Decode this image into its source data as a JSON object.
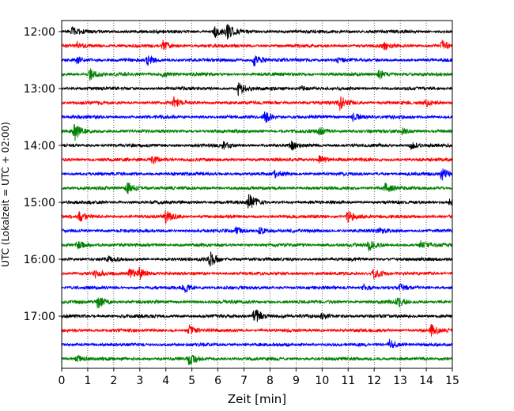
{
  "chart_data": {
    "type": "line",
    "xlabel": "Zeit  [min]",
    "ylabel": "UTC (Lokalzeit = UTC + 02:00)",
    "xlim": [
      0,
      15
    ],
    "x_ticks": [
      0,
      1,
      2,
      3,
      4,
      5,
      6,
      7,
      8,
      9,
      10,
      11,
      12,
      13,
      14,
      15
    ],
    "x_tick_labels": [
      "0",
      "1",
      "2",
      "3",
      "4",
      "5",
      "6",
      "7",
      "8",
      "9",
      "10",
      "11",
      "12",
      "13",
      "14",
      "15"
    ],
    "y_tick_labels": [
      "12:00",
      "13:00",
      "14:00",
      "15:00",
      "16:00",
      "17:00"
    ],
    "row_interval_min": 15,
    "start_time": "12:00",
    "grid_x": true,
    "grid_style": "dotted",
    "colors": [
      "#000000",
      "#ff0000",
      "#0000ff",
      "#008000"
    ],
    "traces": [
      {
        "time": "12:00",
        "color": "#000000",
        "bursts": [
          {
            "t": 0.4,
            "a": 0.5
          },
          {
            "t": 6.3,
            "a": 1.0
          },
          {
            "t": 5.9,
            "a": 0.6
          }
        ]
      },
      {
        "time": "12:15",
        "color": "#ff0000",
        "bursts": [
          {
            "t": 0.6,
            "a": 0.4
          },
          {
            "t": 3.9,
            "a": 0.5
          },
          {
            "t": 12.4,
            "a": 0.4
          },
          {
            "t": 14.6,
            "a": 0.6
          }
        ]
      },
      {
        "time": "12:30",
        "color": "#0000ff",
        "bursts": [
          {
            "t": 0.6,
            "a": 0.4
          },
          {
            "t": 3.3,
            "a": 0.5
          },
          {
            "t": 7.4,
            "a": 0.8
          },
          {
            "t": 10.6,
            "a": 0.3
          }
        ]
      },
      {
        "time": "12:45",
        "color": "#008000",
        "bursts": [
          {
            "t": 1.1,
            "a": 0.6
          },
          {
            "t": 3.9,
            "a": 0.3
          },
          {
            "t": 12.2,
            "a": 0.5
          }
        ]
      },
      {
        "time": "13:00",
        "color": "#000000",
        "bursts": [
          {
            "t": 6.8,
            "a": 0.8
          },
          {
            "t": 9.2,
            "a": 0.3
          }
        ]
      },
      {
        "time": "13:15",
        "color": "#ff0000",
        "bursts": [
          {
            "t": 4.3,
            "a": 0.6
          },
          {
            "t": 10.7,
            "a": 0.9
          },
          {
            "t": 14.0,
            "a": 0.4
          }
        ]
      },
      {
        "time": "13:30",
        "color": "#0000ff",
        "bursts": [
          {
            "t": 7.8,
            "a": 0.7
          },
          {
            "t": 11.2,
            "a": 0.5
          }
        ]
      },
      {
        "time": "13:45",
        "color": "#008000",
        "bursts": [
          {
            "t": 0.5,
            "a": 1.0
          },
          {
            "t": 9.9,
            "a": 0.4
          },
          {
            "t": 13.1,
            "a": 0.3
          }
        ]
      },
      {
        "time": "14:00",
        "color": "#000000",
        "bursts": [
          {
            "t": 6.2,
            "a": 0.4
          },
          {
            "t": 8.8,
            "a": 0.5
          },
          {
            "t": 13.4,
            "a": 0.4
          }
        ]
      },
      {
        "time": "14:15",
        "color": "#ff0000",
        "bursts": [
          {
            "t": 3.5,
            "a": 0.5
          },
          {
            "t": 9.9,
            "a": 0.6
          }
        ]
      },
      {
        "time": "14:30",
        "color": "#0000ff",
        "bursts": [
          {
            "t": 8.2,
            "a": 0.4
          },
          {
            "t": 14.6,
            "a": 0.7
          }
        ]
      },
      {
        "time": "14:45",
        "color": "#008000",
        "bursts": [
          {
            "t": 2.5,
            "a": 0.8
          },
          {
            "t": 12.4,
            "a": 0.7
          }
        ]
      },
      {
        "time": "15:00",
        "color": "#000000",
        "bursts": [
          {
            "t": 7.2,
            "a": 0.9
          },
          {
            "t": 14.9,
            "a": 0.3
          }
        ]
      },
      {
        "time": "15:15",
        "color": "#ff0000",
        "bursts": [
          {
            "t": 0.7,
            "a": 0.5
          },
          {
            "t": 4.0,
            "a": 0.7
          },
          {
            "t": 11.0,
            "a": 0.8
          }
        ]
      },
      {
        "time": "15:30",
        "color": "#0000ff",
        "bursts": [
          {
            "t": 6.7,
            "a": 0.4
          },
          {
            "t": 7.6,
            "a": 0.4
          },
          {
            "t": 12.2,
            "a": 0.3
          }
        ]
      },
      {
        "time": "15:45",
        "color": "#008000",
        "bursts": [
          {
            "t": 0.6,
            "a": 0.6
          },
          {
            "t": 11.8,
            "a": 0.6
          },
          {
            "t": 13.8,
            "a": 0.4
          }
        ]
      },
      {
        "time": "16:00",
        "color": "#000000",
        "bursts": [
          {
            "t": 5.7,
            "a": 0.9
          },
          {
            "t": 1.8,
            "a": 0.3
          }
        ]
      },
      {
        "time": "16:15",
        "color": "#ff0000",
        "bursts": [
          {
            "t": 1.3,
            "a": 0.4
          },
          {
            "t": 2.6,
            "a": 0.6
          },
          {
            "t": 3.0,
            "a": 0.6
          },
          {
            "t": 12.0,
            "a": 0.7
          }
        ]
      },
      {
        "time": "16:30",
        "color": "#0000ff",
        "bursts": [
          {
            "t": 4.7,
            "a": 0.5
          },
          {
            "t": 11.6,
            "a": 0.4
          },
          {
            "t": 13.0,
            "a": 0.3
          }
        ]
      },
      {
        "time": "16:45",
        "color": "#008000",
        "bursts": [
          {
            "t": 1.4,
            "a": 0.7
          },
          {
            "t": 12.9,
            "a": 0.6
          }
        ]
      },
      {
        "time": "17:00",
        "color": "#000000",
        "bursts": [
          {
            "t": 7.4,
            "a": 1.0
          },
          {
            "t": 10.0,
            "a": 0.4
          }
        ]
      },
      {
        "time": "17:15",
        "color": "#ff0000",
        "bursts": [
          {
            "t": 4.9,
            "a": 0.6
          },
          {
            "t": 14.2,
            "a": 0.6
          }
        ]
      },
      {
        "time": "17:30",
        "color": "#0000ff",
        "bursts": [
          {
            "t": 12.6,
            "a": 0.6
          }
        ]
      },
      {
        "time": "17:45",
        "color": "#008000",
        "bursts": [
          {
            "t": 0.6,
            "a": 0.4
          },
          {
            "t": 4.9,
            "a": 0.7
          }
        ]
      }
    ]
  }
}
